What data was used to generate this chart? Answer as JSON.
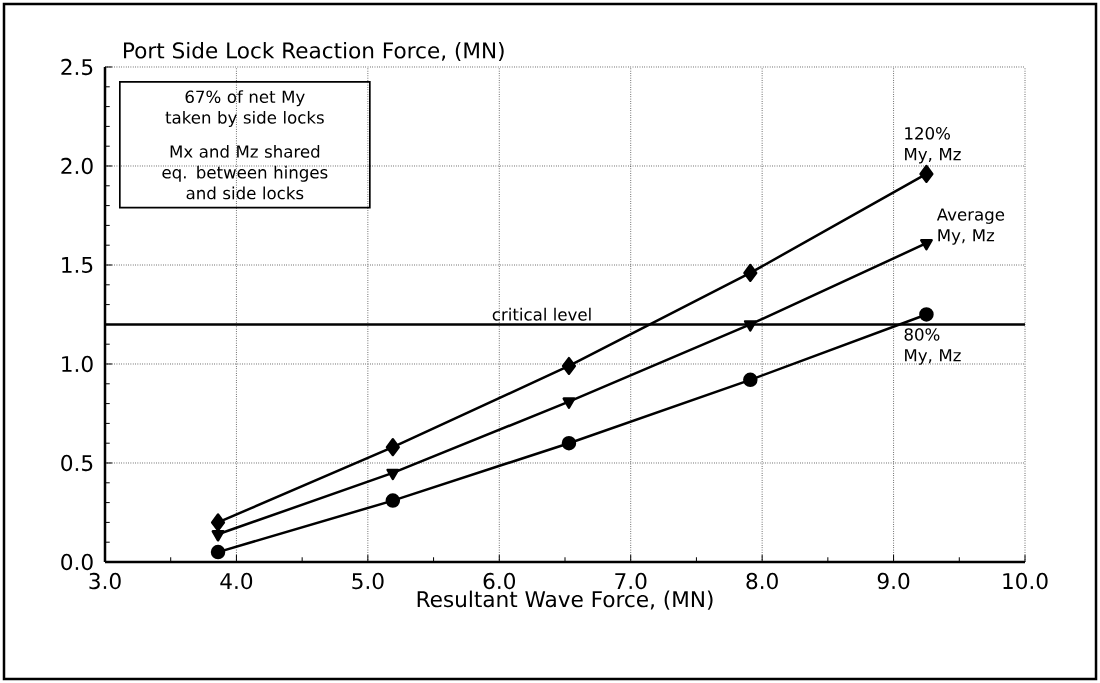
{
  "chart_data": {
    "type": "line",
    "ylabel": "Port Side Lock Reaction Force, (MN)",
    "xlabel": "Resultant Wave Force, (MN)",
    "x": [
      3.86,
      5.19,
      6.53,
      7.91,
      9.25
    ],
    "series": [
      {
        "name": "120% My, Mz",
        "color": "#000000",
        "marker": "diamond",
        "values": [
          0.2,
          0.58,
          0.99,
          1.46,
          1.96
        ]
      },
      {
        "name": "Average My, Mz",
        "color": "#000000",
        "marker": "triangle",
        "values": [
          0.14,
          0.45,
          0.81,
          1.2,
          1.61
        ]
      },
      {
        "name": "80% My, Mz",
        "color": "#000000",
        "marker": "circle",
        "values": [
          0.05,
          0.31,
          0.6,
          0.92,
          1.25
        ]
      }
    ],
    "xlim": [
      3.0,
      10.0
    ],
    "xticks": [
      {
        "value": 3,
        "label": "3.0"
      },
      {
        "value": 4,
        "label": "4.0"
      },
      {
        "value": 5,
        "label": "5.0"
      },
      {
        "value": 6,
        "label": "6.0"
      },
      {
        "value": 7,
        "label": "7.0"
      },
      {
        "value": 8,
        "label": "8.0"
      },
      {
        "value": 9,
        "label": "9.0"
      },
      {
        "value": 10,
        "label": "10.0"
      }
    ],
    "ylim": [
      0.0,
      2.5
    ],
    "yticks": [
      {
        "value": 0,
        "label": "0.0"
      },
      {
        "value": 0.5,
        "label": "0.5"
      },
      {
        "value": 1,
        "label": "1.0"
      },
      {
        "value": 1.5,
        "label": "1.5"
      },
      {
        "value": 2,
        "label": "2.0"
      },
      {
        "value": 2.5,
        "label": "2.5"
      }
    ],
    "ref_lines": [
      {
        "axis": "y",
        "value": 1.2,
        "label": "critical level",
        "color": "#000000"
      }
    ],
    "annotations": [
      "67% of net My taken by side locks",
      "Mx and Mz shared eq. between hinges and side locks"
    ],
    "grid": true
  }
}
